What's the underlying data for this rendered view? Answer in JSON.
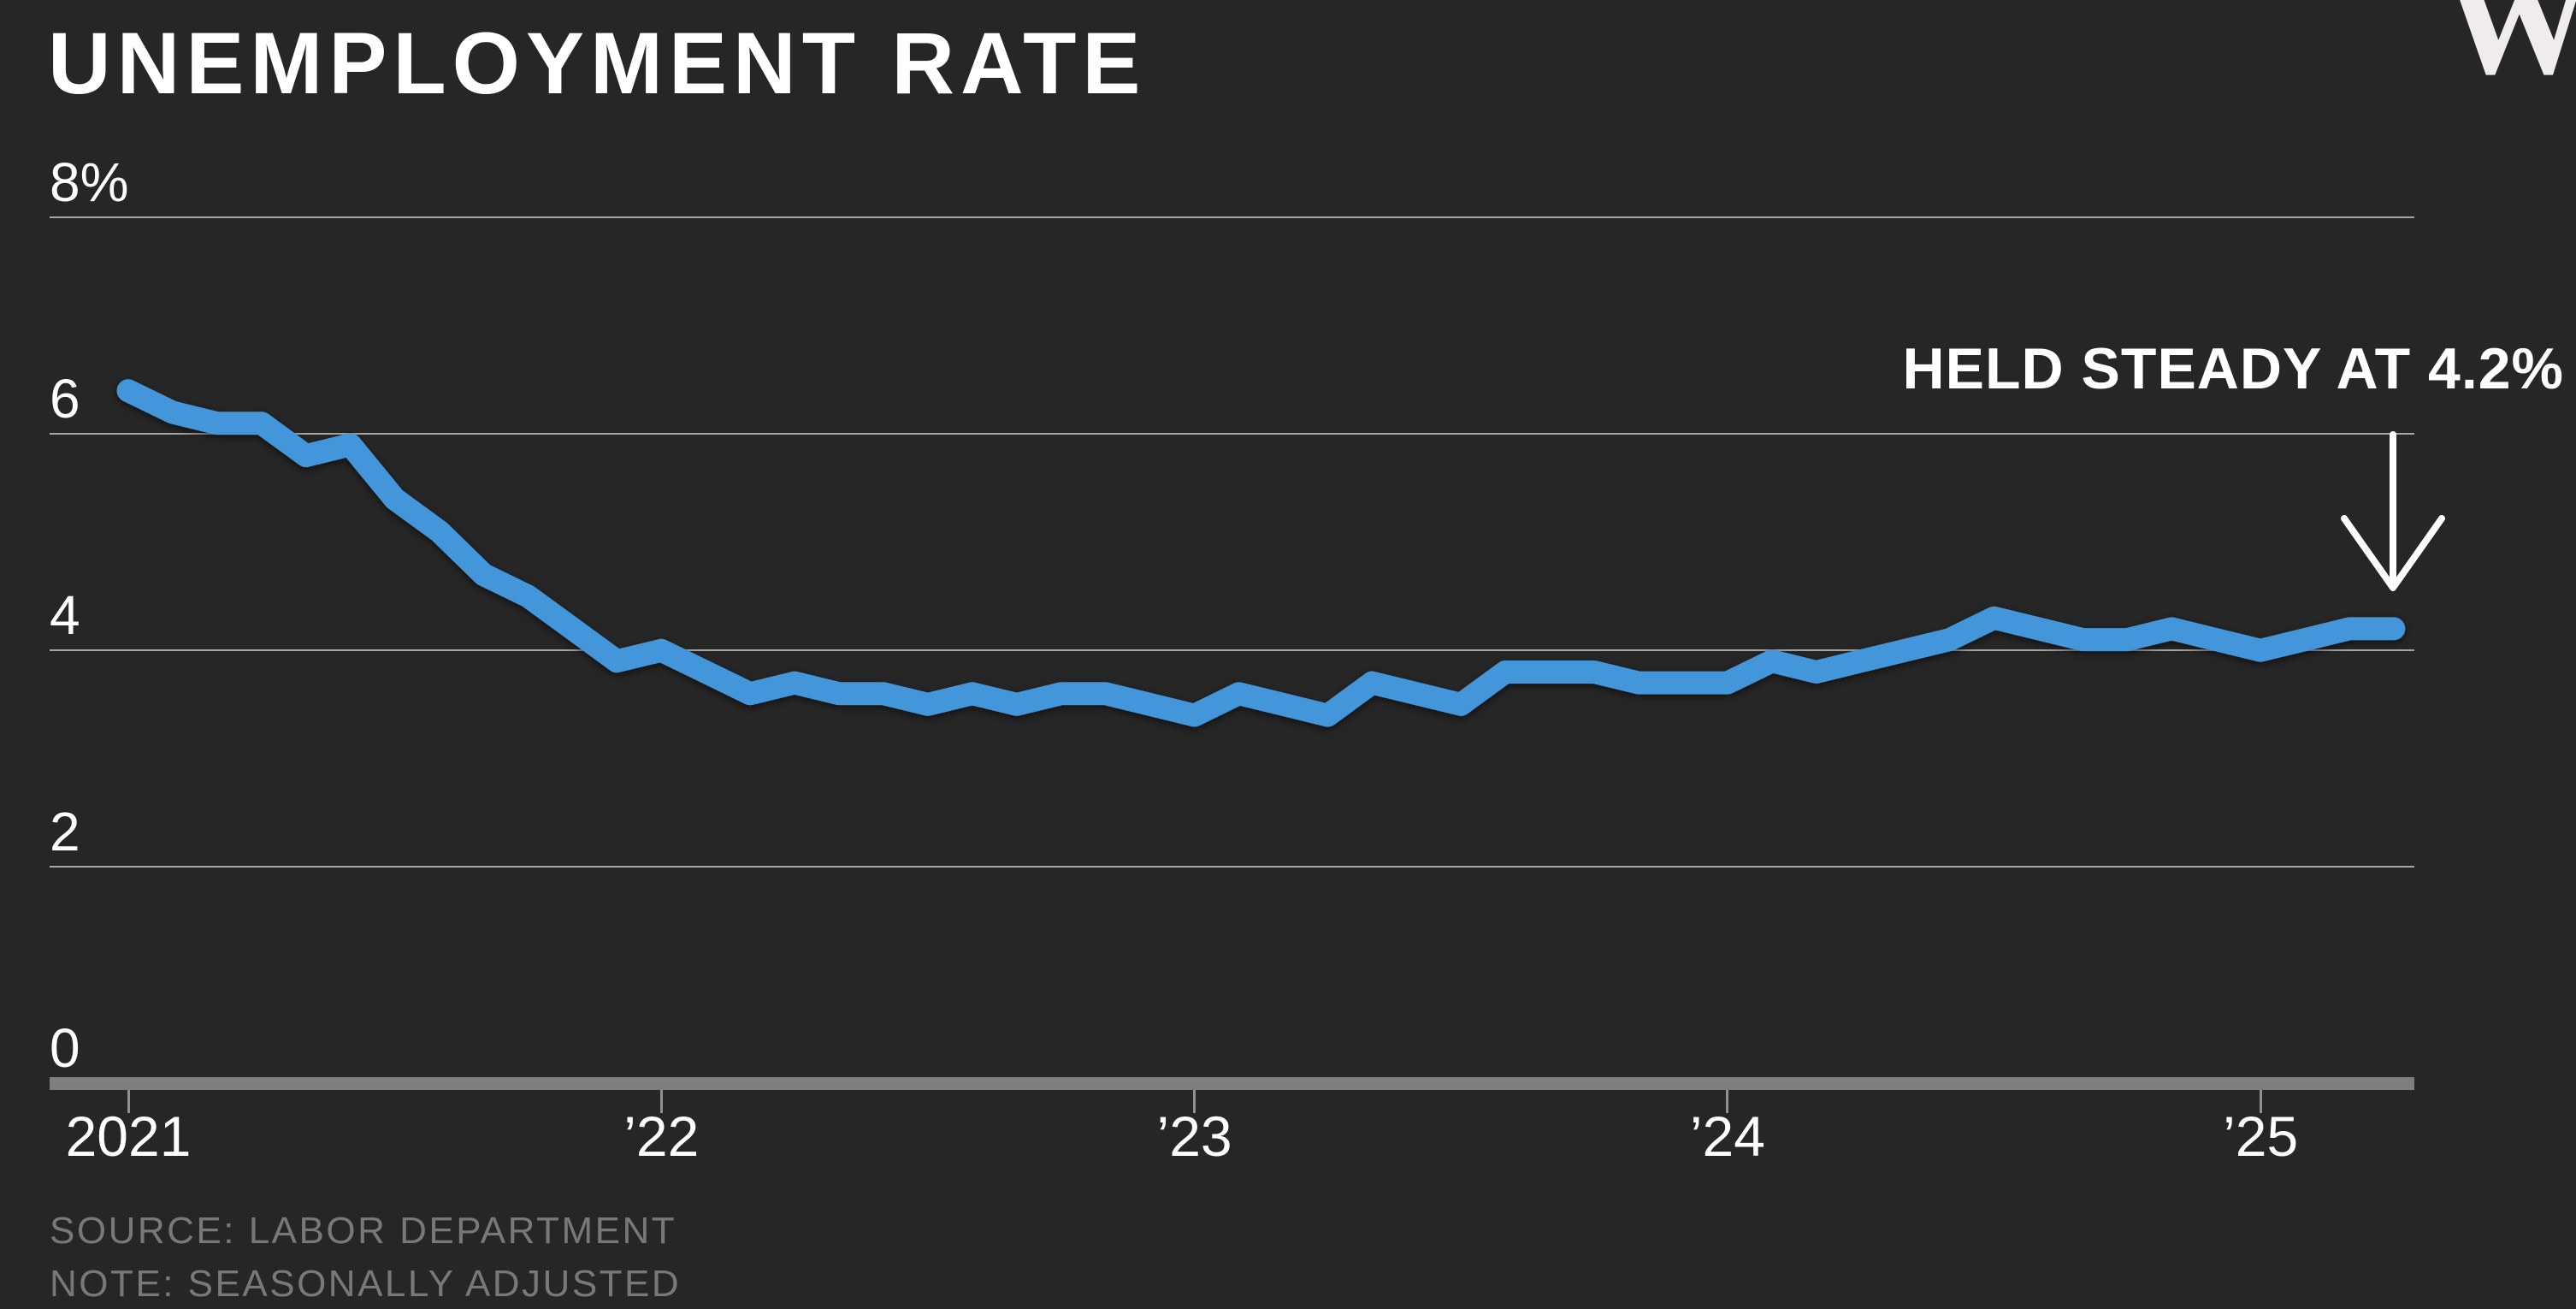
{
  "header": {
    "title": "UNEMPLOYMENT RATE",
    "logo": "WSJ."
  },
  "annotation": {
    "text": "HELD STEADY AT 4.2%",
    "points_to": "last data point"
  },
  "footer": {
    "source": "SOURCE: LABOR DEPARTMENT",
    "note": "NOTE: SEASONALLY ADJUSTED"
  },
  "colors": {
    "background": "#262626",
    "line": "#4496DB",
    "grid": "#A6A6A6",
    "axis_baseline": "#7E7E7E",
    "text": "#FFFFFF",
    "muted_text": "#787878",
    "arrow": "#FFFFFF"
  },
  "chart_data": {
    "type": "line",
    "title": "UNEMPLOYMENT RATE",
    "unit": "%",
    "x_start": "2021-01",
    "x_end": "2025-04",
    "x_tick_labels": [
      "2021",
      "’22",
      "’23",
      "’24",
      "’25"
    ],
    "y_ticks": [
      {
        "value": 8,
        "label": "8%"
      },
      {
        "value": 6,
        "label": "6"
      },
      {
        "value": 4,
        "label": "4"
      },
      {
        "value": 2,
        "label": "2"
      },
      {
        "value": 0,
        "label": "0"
      }
    ],
    "ylim": [
      0,
      8.5
    ],
    "grid": "horizontal gridlines on",
    "legend": "none",
    "last_value": 4.2,
    "annotation": "HELD STEADY AT 4.2%",
    "series": [
      {
        "name": "U.S. unemployment rate, seasonally adjusted, monthly",
        "values": [
          6.4,
          6.2,
          6.1,
          6.1,
          5.8,
          5.9,
          5.4,
          5.1,
          4.7,
          4.5,
          4.2,
          3.9,
          4.0,
          3.8,
          3.6,
          3.7,
          3.6,
          3.6,
          3.5,
          3.6,
          3.5,
          3.6,
          3.6,
          3.5,
          3.4,
          3.6,
          3.5,
          3.4,
          3.7,
          3.6,
          3.5,
          3.8,
          3.8,
          3.8,
          3.7,
          3.7,
          3.7,
          3.9,
          3.8,
          3.9,
          4.0,
          4.1,
          4.3,
          4.2,
          4.1,
          4.1,
          4.2,
          4.1,
          4.0,
          4.1,
          4.2,
          4.2
        ]
      }
    ]
  }
}
